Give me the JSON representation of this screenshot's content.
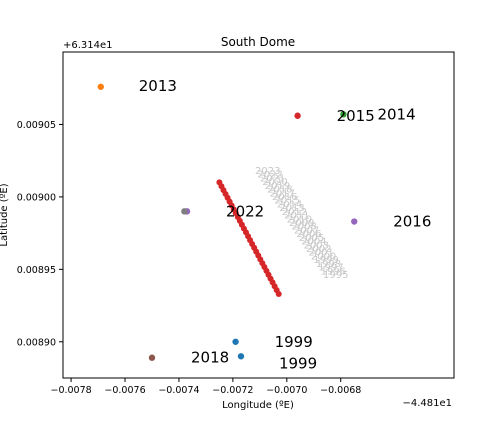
{
  "chart_data": {
    "type": "scatter",
    "title": "South Dome",
    "xlabel": "Longitude (ºE)",
    "ylabel": "Latitude (ºE)",
    "x_offset_label": "−4.481e1",
    "y_offset_label": "+6.314e1",
    "xlim": [
      -0.00783,
      -0.00638
    ],
    "ylim": [
      0.008875,
      0.0091
    ],
    "x_ticks": [
      {
        "value": -0.0078,
        "label": "−0.0078"
      },
      {
        "value": -0.0076,
        "label": "−0.0076"
      },
      {
        "value": -0.0074,
        "label": "−0.0074"
      },
      {
        "value": -0.0072,
        "label": "−0.0072"
      },
      {
        "value": -0.007,
        "label": "−0.0070"
      },
      {
        "value": -0.0068,
        "label": "−0.0068"
      }
    ],
    "y_ticks": [
      {
        "value": 0.0089,
        "label": "0.00890"
      },
      {
        "value": 0.00895,
        "label": "0.00895"
      },
      {
        "value": 0.009,
        "label": "0.00900"
      },
      {
        "value": 0.00905,
        "label": "0.00905"
      }
    ],
    "grid": false,
    "points": [
      {
        "x": -0.00717,
        "y": 0.00889,
        "color": "#1f77b4",
        "label": "1999"
      },
      {
        "x": -0.00719,
        "y": 0.0089,
        "color": "#1f77b4",
        "label": "1999"
      },
      {
        "x": -0.00769,
        "y": 0.009076,
        "color": "#ff7f0e",
        "label": "2013"
      },
      {
        "x": -0.00679,
        "y": 0.009057,
        "color": "#2ca02c",
        "label": "2014"
      },
      {
        "x": -0.00696,
        "y": 0.009056,
        "color": "#d62728",
        "label": "2015"
      },
      {
        "x": -0.00675,
        "y": 0.008983,
        "color": "#9467bd",
        "label": "2016"
      },
      {
        "x": -0.0075,
        "y": 0.008889,
        "color": "#8c564b",
        "label": "2018"
      },
      {
        "x": -0.00737,
        "y": 0.00899,
        "color": "#9467bd",
        "label": "2022"
      },
      {
        "x": -0.00738,
        "y": 0.00899,
        "color": "#7f7f7f",
        "label": ""
      }
    ],
    "trail": {
      "color": "#d62728",
      "start": {
        "x": -0.00725,
        "y": 0.00901
      },
      "end": {
        "x": -0.00703,
        "y": 0.008933
      },
      "count": 30
    },
    "faded_year_labels": [
      "2023",
      "2022",
      "2021",
      "2020",
      "2019",
      "2018",
      "2017",
      "2016",
      "2015",
      "2014",
      "2013",
      "2012",
      "2011",
      "2010",
      "2009",
      "2008",
      "2007",
      "2006",
      "2005",
      "2004",
      "2003",
      "2002",
      "2001",
      "2000",
      "1999",
      "1998",
      "1997",
      "1996",
      "1995"
    ]
  }
}
